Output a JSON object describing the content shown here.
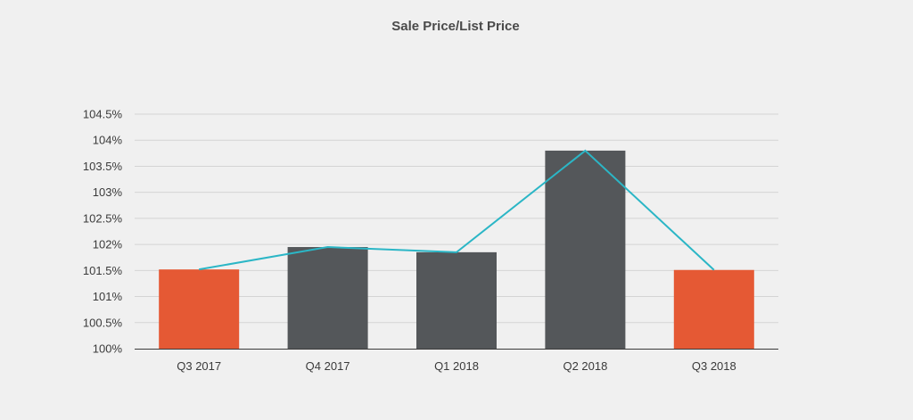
{
  "chart_data": {
    "type": "bar",
    "title": "Sale Price/List Price",
    "xlabel": "",
    "ylabel": "",
    "categories": [
      "Q3 2017",
      "Q4 2017",
      "Q1 2018",
      "Q2 2018",
      "Q3 2018"
    ],
    "y_ticks": [
      "100%",
      "100.5%",
      "101%",
      "101.5%",
      "102%",
      "102.5%",
      "103%",
      "103.5%",
      "104%",
      "104.5%"
    ],
    "ylim": [
      100,
      104.5
    ],
    "grid": true,
    "legend": "none",
    "series": [
      {
        "type": "bar",
        "values": [
          101.52,
          101.95,
          101.85,
          103.8,
          101.51
        ],
        "colors": [
          "#e55934",
          "#54575a",
          "#54575a",
          "#54575a",
          "#e55934"
        ]
      },
      {
        "type": "line",
        "values": [
          101.52,
          101.95,
          101.85,
          103.8,
          101.51
        ],
        "color": "#2bb6c6"
      }
    ]
  }
}
